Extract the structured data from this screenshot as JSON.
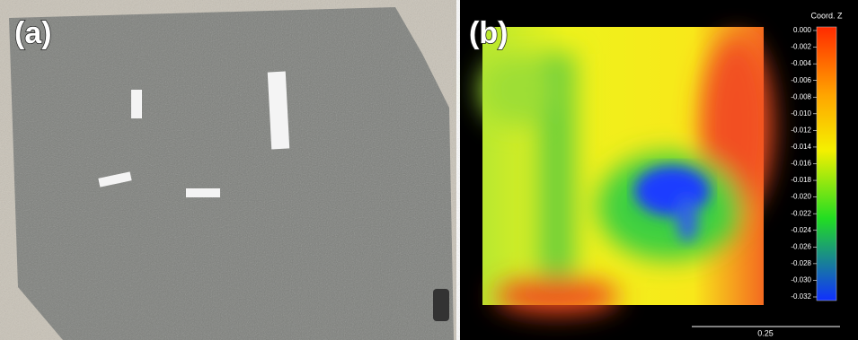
{
  "panels": [
    {
      "label": "(a)"
    },
    {
      "label": "(b)",
      "colorbar": {
        "title": "Coord. Z",
        "zlim": [
          -0.032,
          0
        ],
        "ticks": [
          {
            "value": 0,
            "label": "0.000"
          },
          {
            "value": -0.002,
            "label": "-0.002"
          },
          {
            "value": -0.004,
            "label": "-0.004"
          },
          {
            "value": -0.006,
            "label": "-0.006"
          },
          {
            "value": -0.008,
            "label": "-0.008"
          },
          {
            "value": -0.01,
            "label": "-0.010"
          },
          {
            "value": -0.012,
            "label": "-0.012"
          },
          {
            "value": -0.014,
            "label": "-0.014"
          },
          {
            "value": -0.016,
            "label": "-0.016"
          },
          {
            "value": -0.018,
            "label": "-0.018"
          },
          {
            "value": -0.02,
            "label": "-0.020"
          },
          {
            "value": -0.022,
            "label": "-0.022"
          },
          {
            "value": -0.024,
            "label": "-0.024"
          },
          {
            "value": -0.026,
            "label": "-0.026"
          },
          {
            "value": -0.028,
            "label": "-0.028"
          },
          {
            "value": -0.03,
            "label": "-0.030"
          },
          {
            "value": -0.032,
            "label": "-0.032"
          }
        ]
      },
      "scale_bar": "0.25"
    }
  ]
}
